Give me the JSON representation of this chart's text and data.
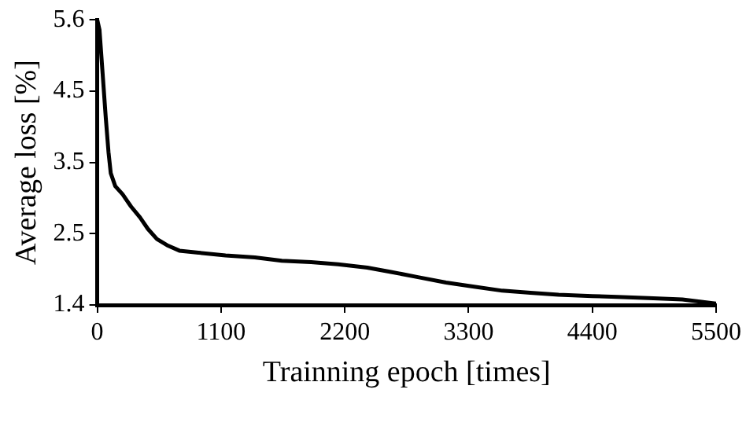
{
  "chart_data": {
    "type": "line",
    "xlabel": "Trainning epoch [times]",
    "ylabel": "Average loss [%]",
    "xlim": [
      0,
      5500
    ],
    "xticks": [
      0,
      1100,
      2200,
      3300,
      4400,
      5500
    ],
    "ylim": [
      1.4,
      5.6
    ],
    "yticks": [
      1.4,
      {
        "value": 2.45,
        "label": "2.5"
      },
      3.5,
      {
        "value": 4.55,
        "label": "4.5"
      },
      5.6
    ],
    "grid": false,
    "legend": false,
    "marker": "none",
    "line_style": "solid",
    "series": [
      {
        "color": "#000000",
        "x": [
          0,
          20,
          45,
          76,
          100,
          120,
          160,
          225,
          300,
          380,
          450,
          530,
          620,
          730,
          900,
          1140,
          1400,
          1640,
          1900,
          2140,
          2400,
          2600,
          2850,
          3100,
          3350,
          3600,
          3850,
          4100,
          4400,
          4620,
          4900,
          5200,
          5500
        ],
        "values": [
          5.6,
          5.45,
          4.87,
          4.15,
          3.65,
          3.34,
          3.15,
          3.03,
          2.85,
          2.69,
          2.52,
          2.37,
          2.28,
          2.2,
          2.17,
          2.13,
          2.1,
          2.05,
          2.03,
          2.0,
          1.95,
          1.89,
          1.81,
          1.73,
          1.67,
          1.61,
          1.58,
          1.55,
          1.53,
          1.52,
          1.5,
          1.48,
          1.42
        ]
      }
    ]
  }
}
